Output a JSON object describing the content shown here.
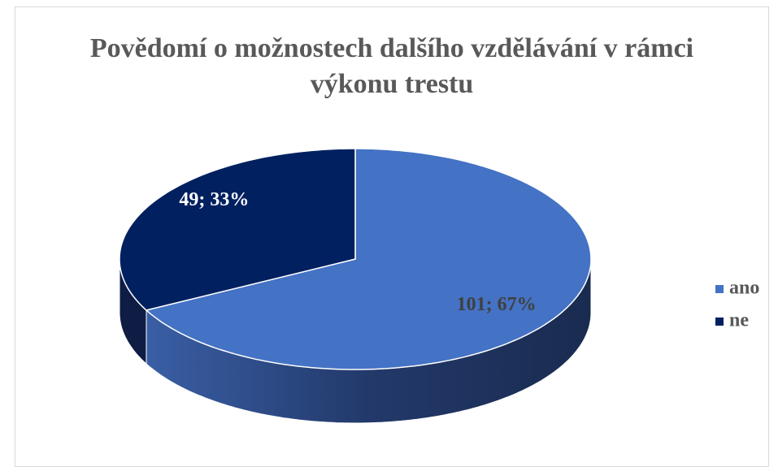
{
  "chart_data": {
    "type": "pie",
    "title": "Povědomí o možnostech dalšího vzdělávání v rámci výkonu trestu",
    "categories": [
      "ano",
      "ne"
    ],
    "values": [
      101,
      49
    ],
    "value_labels": [
      "101; 67%",
      "49; 33%"
    ],
    "colors": [
      "#4472c4",
      "#002060"
    ],
    "legend": "right"
  }
}
